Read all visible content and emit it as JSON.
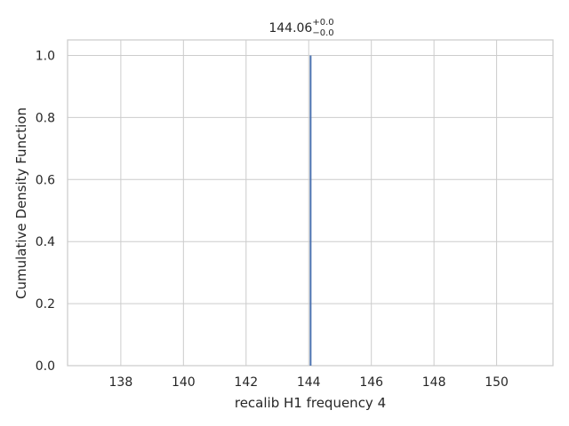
{
  "chart_data": {
    "type": "line",
    "title": {
      "value": "144.06",
      "upper": "+0.0",
      "lower": "−0.0"
    },
    "xlabel": "recalib H1 frequency 4",
    "ylabel": "Cumulative Density Function",
    "xlim": [
      136.3,
      151.8
    ],
    "ylim": [
      0,
      1.05
    ],
    "xticks": [
      138,
      140,
      142,
      144,
      146,
      148,
      150
    ],
    "xtick_labels": [
      "138",
      "140",
      "142",
      "144",
      "146",
      "148",
      "150"
    ],
    "yticks": [
      0.0,
      0.2,
      0.4,
      0.6,
      0.8,
      1.0
    ],
    "ytick_labels": [
      "0.0",
      "0.2",
      "0.4",
      "0.6",
      "0.8",
      "1.0"
    ],
    "grid": true,
    "series": [
      {
        "x": [
          144.06,
          144.06
        ],
        "y": [
          0.0,
          1.0
        ],
        "color": "#4c72b0"
      }
    ]
  }
}
